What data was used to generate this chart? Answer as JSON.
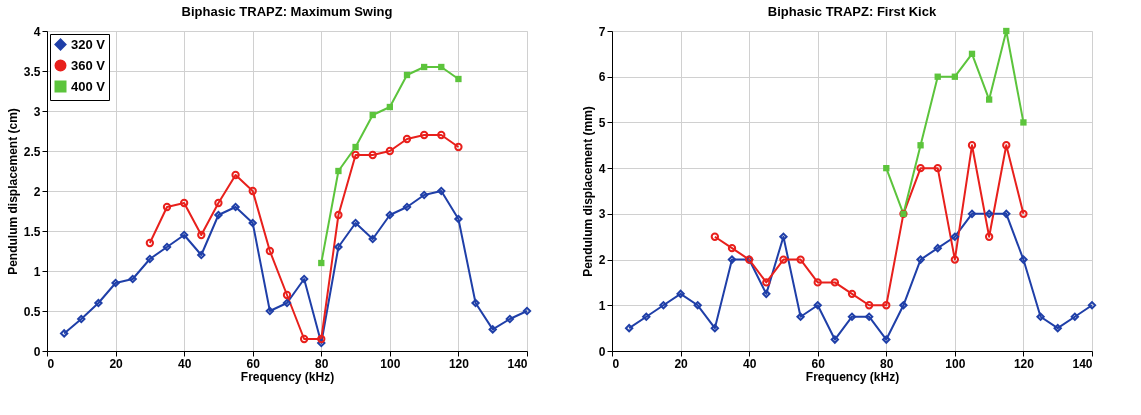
{
  "chart_data": [
    {
      "type": "line",
      "title": "Biphasic TRAPZ: Maximum Swing",
      "xlabel": "Frequency (kHz)",
      "ylabel": "Pendulum displacement (cm)",
      "xlim": [
        0,
        140
      ],
      "xticks": [
        0,
        20,
        40,
        60,
        80,
        100,
        120,
        140
      ],
      "ylim": [
        0,
        4
      ],
      "yticks": [
        0,
        0.5,
        1,
        1.5,
        2,
        2.5,
        3,
        3.5,
        4
      ],
      "grid": true,
      "legend": "top left",
      "series": [
        {
          "name": "320 V",
          "color": "#1f3fa8",
          "marker": "diamond",
          "x": [
            5,
            10,
            15,
            20,
            25,
            30,
            35,
            40,
            45,
            50,
            55,
            60,
            65,
            70,
            75,
            80,
            85,
            90,
            95,
            100,
            105,
            110,
            115,
            120,
            125,
            130,
            135,
            140
          ],
          "values": [
            0.22,
            0.4,
            0.6,
            0.85,
            0.9,
            1.15,
            1.3,
            1.45,
            1.2,
            1.7,
            1.8,
            1.6,
            0.5,
            0.6,
            0.9,
            0.1,
            1.3,
            1.6,
            1.4,
            1.7,
            1.8,
            1.95,
            2.0,
            1.65,
            0.6,
            0.27,
            0.4,
            0.5
          ]
        },
        {
          "name": "360 V",
          "color": "#e8201c",
          "marker": "circle",
          "x": [
            30,
            35,
            40,
            45,
            50,
            55,
            60,
            65,
            70,
            75,
            80,
            85,
            90,
            95,
            100,
            105,
            110,
            115,
            120
          ],
          "values": [
            1.35,
            1.8,
            1.85,
            1.45,
            1.85,
            2.2,
            2.0,
            1.25,
            0.7,
            0.15,
            0.15,
            1.7,
            2.45,
            2.45,
            2.5,
            2.65,
            2.7,
            2.7,
            2.55
          ]
        },
        {
          "name": "400 V",
          "color": "#5cc43c",
          "marker": "square",
          "x": [
            80,
            85,
            90,
            95,
            100,
            105,
            110,
            115,
            120
          ],
          "values": [
            1.1,
            2.25,
            2.55,
            2.95,
            3.05,
            3.45,
            3.55,
            3.55,
            3.4
          ]
        }
      ]
    },
    {
      "type": "line",
      "title": "Biphasic TRAPZ: First Kick",
      "xlabel": "Frequency (kHz)",
      "ylabel": "Pendulum displacement (mm)",
      "xlim": [
        0,
        140
      ],
      "xticks": [
        0,
        20,
        40,
        60,
        80,
        100,
        120,
        140
      ],
      "ylim": [
        0,
        7
      ],
      "yticks": [
        0,
        1,
        2,
        3,
        4,
        5,
        6,
        7
      ],
      "grid": true,
      "legend": "top left",
      "series": [
        {
          "name": "320 V",
          "color": "#1f3fa8",
          "marker": "diamond",
          "x": [
            5,
            10,
            15,
            20,
            25,
            30,
            35,
            40,
            45,
            50,
            55,
            60,
            65,
            70,
            75,
            80,
            85,
            90,
            95,
            100,
            105,
            110,
            115,
            120,
            125,
            130,
            135,
            140
          ],
          "values": [
            0.5,
            0.75,
            1,
            1.25,
            1,
            0.5,
            2,
            2,
            1.25,
            2.5,
            0.75,
            1,
            0.25,
            0.75,
            0.75,
            0.25,
            1,
            2,
            2.25,
            2.5,
            3,
            3,
            3,
            2,
            0.75,
            0.5,
            0.75,
            1
          ]
        },
        {
          "name": "360 V",
          "color": "#e8201c",
          "marker": "circle",
          "x": [
            30,
            35,
            40,
            45,
            50,
            55,
            60,
            65,
            70,
            75,
            80,
            85,
            90,
            95,
            100,
            105,
            110,
            115,
            120
          ],
          "values": [
            2.5,
            2.25,
            2,
            1.5,
            2,
            2,
            1.5,
            1.5,
            1.25,
            1,
            1,
            3,
            4,
            4,
            2,
            4.5,
            2.5,
            4.5,
            3
          ]
        },
        {
          "name": "400 V",
          "color": "#5cc43c",
          "marker": "square",
          "x": [
            80,
            85,
            90,
            95,
            100,
            105,
            110,
            115,
            120
          ],
          "values": [
            4,
            3,
            4.5,
            6,
            6,
            6.5,
            5.5,
            7,
            5
          ]
        }
      ]
    }
  ]
}
